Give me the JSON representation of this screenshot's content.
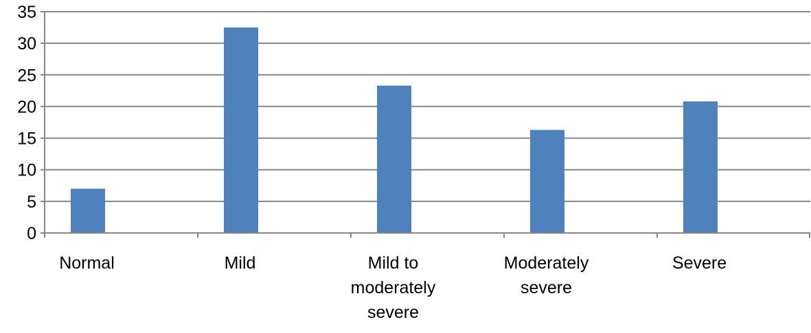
{
  "chart_data": {
    "type": "bar",
    "title": "",
    "xlabel": "",
    "ylabel": "",
    "categories": [
      [
        "Normal"
      ],
      [
        "Mild"
      ],
      [
        "Mild to",
        "moderately",
        "severe"
      ],
      [
        "Moderately",
        "severe"
      ],
      [
        "Severe"
      ]
    ],
    "values": [
      7.0,
      32.5,
      23.3,
      16.3,
      20.8
    ],
    "ylim": [
      0,
      35
    ],
    "yticks": [
      "0",
      "5",
      "10",
      "15",
      "20",
      "25",
      "30",
      "35"
    ],
    "grid": true,
    "legend": "none",
    "bar_color": "#4f81bd"
  }
}
